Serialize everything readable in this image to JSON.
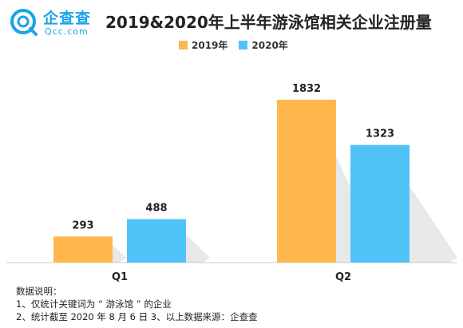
{
  "brand": {
    "name_cn": "企查查",
    "name_en": "Qcc.com"
  },
  "notes": {
    "heading": "数据说明：",
    "line1": "1、仅统计关键词为 “ 游泳馆 ” 的企业",
    "line2": "2、统计截至 2020 年 8 月 6 日 3、以上数据来源：企查查"
  },
  "colors": {
    "series_2019": "#ffb74d",
    "series_2020": "#4fc3f7",
    "brand": "#1aa3e8"
  },
  "chart_data": {
    "type": "bar",
    "title": "2019&2020年上半年游泳馆相关企业注册量",
    "categories": [
      "Q1",
      "Q2"
    ],
    "series": [
      {
        "name": "2019年",
        "values": [
          293,
          1832
        ]
      },
      {
        "name": "2020年",
        "values": [
          488,
          1323
        ]
      }
    ],
    "ylim": [
      0,
      2200
    ],
    "legend": "top-center",
    "grid": false,
    "xlabel": "",
    "ylabel": ""
  }
}
